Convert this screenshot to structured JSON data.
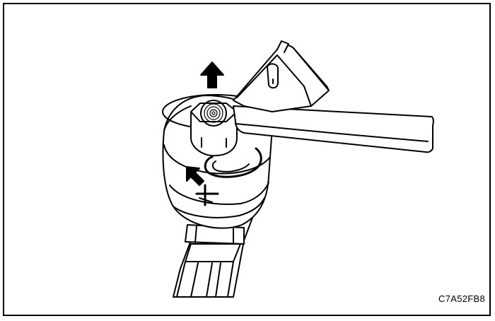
{
  "figure": {
    "code": "C7A52FB8"
  },
  "colors": {
    "line": "#000000",
    "fill": "#ffffff"
  },
  "icons": [
    "arrow-up-icon",
    "arrow-up-left-icon",
    "alignment-mark-icon"
  ]
}
